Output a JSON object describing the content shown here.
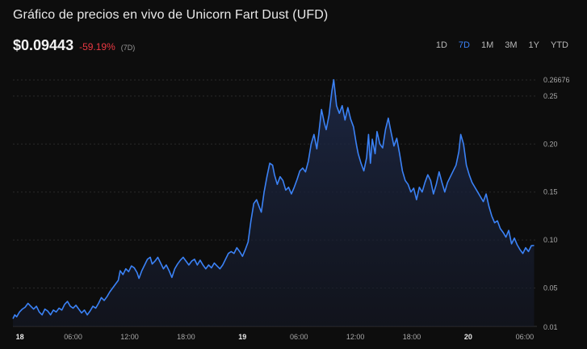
{
  "header": {
    "title": "Gráfico de precios en vivo de Unicorn Fart Dust (UFD)",
    "price": "$0.09443",
    "change": "-59.19%",
    "period": "(7D)"
  },
  "ranges": [
    {
      "label": "1D",
      "active": false
    },
    {
      "label": "7D",
      "active": true
    },
    {
      "label": "1M",
      "active": false
    },
    {
      "label": "3M",
      "active": false
    },
    {
      "label": "1Y",
      "active": false
    },
    {
      "label": "YTD",
      "active": false
    }
  ],
  "colors": {
    "line": "#3b82f6",
    "negative": "#ea3943",
    "accent": "#3b82f6"
  },
  "chart_data": {
    "type": "area",
    "title": "",
    "xlabel": "",
    "ylabel": "",
    "ylim": [
      0.01,
      0.26676
    ],
    "yticks": [
      "0.01",
      "0.05",
      "0.10",
      "0.15",
      "0.20",
      "0.25"
    ],
    "y_max_label": "0.26676",
    "xticks": [
      {
        "label": "18",
        "t": 0,
        "bold": true
      },
      {
        "label": "06:00",
        "t": 6,
        "bold": false
      },
      {
        "label": "12:00",
        "t": 12,
        "bold": false
      },
      {
        "label": "18:00",
        "t": 18,
        "bold": false
      },
      {
        "label": "19",
        "t": 24,
        "bold": true
      },
      {
        "label": "06:00",
        "t": 30,
        "bold": false
      },
      {
        "label": "12:00",
        "t": 36,
        "bold": false
      },
      {
        "label": "18:00",
        "t": 42,
        "bold": false
      },
      {
        "label": "20",
        "t": 48,
        "bold": true
      },
      {
        "label": "06:00",
        "t": 54,
        "bold": false
      }
    ],
    "grid": true,
    "series": [
      {
        "values": [
          [
            -0.4,
            0.018
          ],
          [
            -0.2,
            0.022
          ],
          [
            0.0,
            0.02
          ],
          [
            0.3,
            0.025
          ],
          [
            0.6,
            0.028
          ],
          [
            0.9,
            0.03
          ],
          [
            1.2,
            0.034
          ],
          [
            1.5,
            0.031
          ],
          [
            1.8,
            0.028
          ],
          [
            2.1,
            0.031
          ],
          [
            2.4,
            0.025
          ],
          [
            2.7,
            0.022
          ],
          [
            3.0,
            0.028
          ],
          [
            3.3,
            0.026
          ],
          [
            3.6,
            0.022
          ],
          [
            3.9,
            0.027
          ],
          [
            4.2,
            0.025
          ],
          [
            4.5,
            0.029
          ],
          [
            4.8,
            0.027
          ],
          [
            5.1,
            0.033
          ],
          [
            5.4,
            0.036
          ],
          [
            5.7,
            0.031
          ],
          [
            6.0,
            0.029
          ],
          [
            6.3,
            0.032
          ],
          [
            6.6,
            0.028
          ],
          [
            6.9,
            0.024
          ],
          [
            7.2,
            0.027
          ],
          [
            7.5,
            0.022
          ],
          [
            7.8,
            0.026
          ],
          [
            8.1,
            0.031
          ],
          [
            8.4,
            0.029
          ],
          [
            8.7,
            0.034
          ],
          [
            9.0,
            0.04
          ],
          [
            9.3,
            0.037
          ],
          [
            9.6,
            0.041
          ],
          [
            9.9,
            0.046
          ],
          [
            10.2,
            0.05
          ],
          [
            10.5,
            0.054
          ],
          [
            10.8,
            0.058
          ],
          [
            11.0,
            0.068
          ],
          [
            11.3,
            0.064
          ],
          [
            11.6,
            0.07
          ],
          [
            11.9,
            0.067
          ],
          [
            12.2,
            0.073
          ],
          [
            12.5,
            0.071
          ],
          [
            12.8,
            0.066
          ],
          [
            13.0,
            0.06
          ],
          [
            13.3,
            0.068
          ],
          [
            13.6,
            0.074
          ],
          [
            13.9,
            0.08
          ],
          [
            14.2,
            0.082
          ],
          [
            14.4,
            0.075
          ],
          [
            14.7,
            0.078
          ],
          [
            15.0,
            0.082
          ],
          [
            15.3,
            0.076
          ],
          [
            15.6,
            0.07
          ],
          [
            15.9,
            0.074
          ],
          [
            16.2,
            0.068
          ],
          [
            16.5,
            0.061
          ],
          [
            16.8,
            0.07
          ],
          [
            17.1,
            0.075
          ],
          [
            17.4,
            0.079
          ],
          [
            17.7,
            0.082
          ],
          [
            18.0,
            0.078
          ],
          [
            18.3,
            0.074
          ],
          [
            18.6,
            0.078
          ],
          [
            18.9,
            0.08
          ],
          [
            19.2,
            0.074
          ],
          [
            19.5,
            0.079
          ],
          [
            19.8,
            0.074
          ],
          [
            20.1,
            0.07
          ],
          [
            20.4,
            0.074
          ],
          [
            20.7,
            0.071
          ],
          [
            21.0,
            0.076
          ],
          [
            21.3,
            0.073
          ],
          [
            21.6,
            0.07
          ],
          [
            21.9,
            0.074
          ],
          [
            22.2,
            0.08
          ],
          [
            22.5,
            0.086
          ],
          [
            22.8,
            0.088
          ],
          [
            23.1,
            0.086
          ],
          [
            23.4,
            0.092
          ],
          [
            23.7,
            0.088
          ],
          [
            24.0,
            0.083
          ],
          [
            24.3,
            0.09
          ],
          [
            24.6,
            0.098
          ],
          [
            24.9,
            0.12
          ],
          [
            25.2,
            0.138
          ],
          [
            25.5,
            0.142
          ],
          [
            25.8,
            0.134
          ],
          [
            26.0,
            0.129
          ],
          [
            26.3,
            0.15
          ],
          [
            26.6,
            0.166
          ],
          [
            26.9,
            0.18
          ],
          [
            27.2,
            0.178
          ],
          [
            27.4,
            0.168
          ],
          [
            27.7,
            0.158
          ],
          [
            28.0,
            0.166
          ],
          [
            28.3,
            0.162
          ],
          [
            28.6,
            0.152
          ],
          [
            28.9,
            0.155
          ],
          [
            29.2,
            0.148
          ],
          [
            29.5,
            0.155
          ],
          [
            29.8,
            0.163
          ],
          [
            30.1,
            0.172
          ],
          [
            30.4,
            0.175
          ],
          [
            30.7,
            0.171
          ],
          [
            31.0,
            0.182
          ],
          [
            31.3,
            0.2
          ],
          [
            31.6,
            0.21
          ],
          [
            31.9,
            0.195
          ],
          [
            32.1,
            0.21
          ],
          [
            32.4,
            0.236
          ],
          [
            32.7,
            0.222
          ],
          [
            32.9,
            0.215
          ],
          [
            33.2,
            0.23
          ],
          [
            33.5,
            0.255
          ],
          [
            33.7,
            0.267
          ],
          [
            34.0,
            0.24
          ],
          [
            34.3,
            0.232
          ],
          [
            34.6,
            0.24
          ],
          [
            34.9,
            0.225
          ],
          [
            35.2,
            0.238
          ],
          [
            35.5,
            0.226
          ],
          [
            35.8,
            0.218
          ],
          [
            36.1,
            0.2
          ],
          [
            36.3,
            0.19
          ],
          [
            36.6,
            0.18
          ],
          [
            36.9,
            0.172
          ],
          [
            37.2,
            0.186
          ],
          [
            37.4,
            0.21
          ],
          [
            37.6,
            0.18
          ],
          [
            37.8,
            0.205
          ],
          [
            38.1,
            0.19
          ],
          [
            38.3,
            0.213
          ],
          [
            38.6,
            0.2
          ],
          [
            38.9,
            0.196
          ],
          [
            39.2,
            0.215
          ],
          [
            39.5,
            0.227
          ],
          [
            39.8,
            0.212
          ],
          [
            40.1,
            0.198
          ],
          [
            40.4,
            0.206
          ],
          [
            40.7,
            0.19
          ],
          [
            41.0,
            0.172
          ],
          [
            41.3,
            0.162
          ],
          [
            41.6,
            0.158
          ],
          [
            41.9,
            0.15
          ],
          [
            42.2,
            0.154
          ],
          [
            42.5,
            0.142
          ],
          [
            42.8,
            0.155
          ],
          [
            43.1,
            0.15
          ],
          [
            43.4,
            0.16
          ],
          [
            43.7,
            0.168
          ],
          [
            44.0,
            0.162
          ],
          [
            44.3,
            0.148
          ],
          [
            44.6,
            0.158
          ],
          [
            44.9,
            0.171
          ],
          [
            45.2,
            0.16
          ],
          [
            45.5,
            0.15
          ],
          [
            45.8,
            0.16
          ],
          [
            46.1,
            0.166
          ],
          [
            46.4,
            0.172
          ],
          [
            46.7,
            0.178
          ],
          [
            47.0,
            0.192
          ],
          [
            47.2,
            0.21
          ],
          [
            47.5,
            0.2
          ],
          [
            47.8,
            0.178
          ],
          [
            48.1,
            0.168
          ],
          [
            48.4,
            0.16
          ],
          [
            48.7,
            0.155
          ],
          [
            49.0,
            0.15
          ],
          [
            49.3,
            0.145
          ],
          [
            49.6,
            0.14
          ],
          [
            49.9,
            0.148
          ],
          [
            50.2,
            0.135
          ],
          [
            50.5,
            0.125
          ],
          [
            50.8,
            0.118
          ],
          [
            51.1,
            0.12
          ],
          [
            51.4,
            0.112
          ],
          [
            51.7,
            0.108
          ],
          [
            52.0,
            0.103
          ],
          [
            52.3,
            0.11
          ],
          [
            52.6,
            0.096
          ],
          [
            52.9,
            0.102
          ],
          [
            53.2,
            0.095
          ],
          [
            53.5,
            0.09
          ],
          [
            53.8,
            0.086
          ],
          [
            54.1,
            0.092
          ],
          [
            54.4,
            0.088
          ],
          [
            54.7,
            0.094
          ],
          [
            55.0,
            0.0944
          ]
        ]
      }
    ]
  }
}
